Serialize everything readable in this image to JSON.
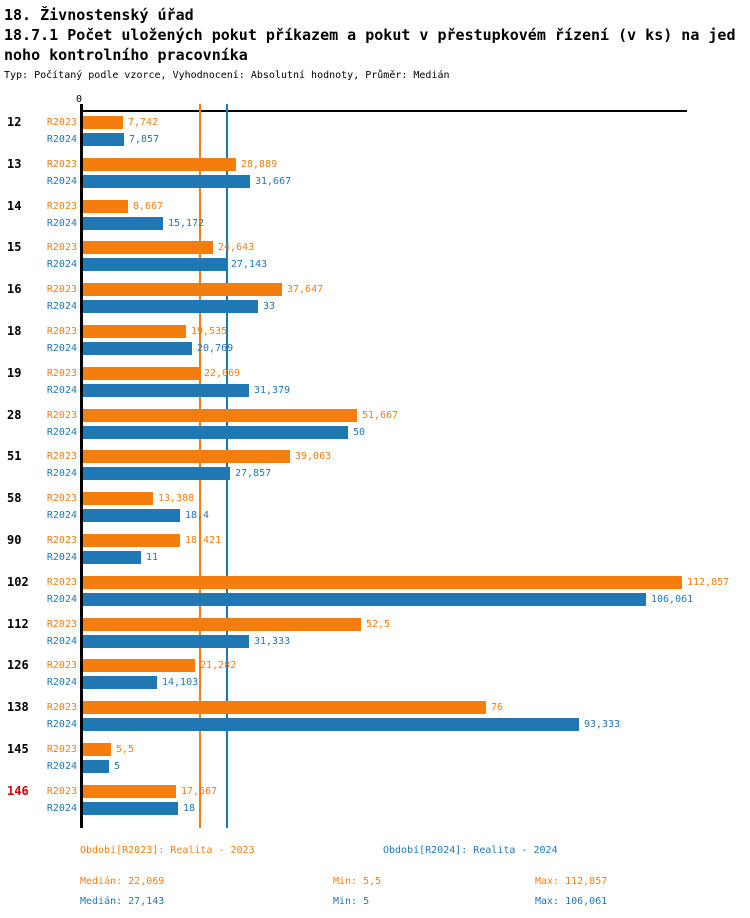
{
  "header": {
    "title_line1": "18. Živnostenský úřad",
    "title_line2": "18.7.1 Počet uložených pokut příkazem a pokut v přestupkovém řízení (v ks) na jed",
    "title_line3": "noho kontrolního pracovníka",
    "subtitle": "Typ: Počítaný podle vzorce, Vyhodnocení: Absolutní hodnoty, Průměr: Medián"
  },
  "chart_data": {
    "type": "bar",
    "orientation": "horizontal",
    "axis_origin_label": "0",
    "x_axis": {
      "min": 0,
      "max_visible": 113.6,
      "grid": false
    },
    "legend_position": "bottom",
    "highlight_color": "#E00000",
    "series": [
      {
        "name": "R2023",
        "color": "#F57D0D",
        "legend": "Období[R2023]: Realita - 2023",
        "median": 22.069,
        "stats": {
          "median_label": "Medián: 22,069",
          "min_label": "Min: 5,5",
          "max_label": "Max: 112,857"
        }
      },
      {
        "name": "R2024",
        "color": "#1F77B4",
        "legend": "Období[R2024]: Realita - 2024",
        "median": 27.143,
        "stats": {
          "median_label": "Medián: 27,143",
          "min_label": "Min: 5",
          "max_label": "Max: 106,061"
        }
      }
    ],
    "categories": [
      {
        "label": "12",
        "highlight": false,
        "values": [
          7.742,
          7.857
        ],
        "value_labels": [
          "7,742",
          "7,857"
        ]
      },
      {
        "label": "13",
        "highlight": false,
        "values": [
          28.889,
          31.667
        ],
        "value_labels": [
          "28,889",
          "31,667"
        ]
      },
      {
        "label": "14",
        "highlight": false,
        "values": [
          8.667,
          15.172
        ],
        "value_labels": [
          "8,667",
          "15,172"
        ]
      },
      {
        "label": "15",
        "highlight": false,
        "values": [
          24.643,
          27.143
        ],
        "value_labels": [
          "24,643",
          "27,143"
        ]
      },
      {
        "label": "16",
        "highlight": false,
        "values": [
          37.647,
          33
        ],
        "value_labels": [
          "37,647",
          "33"
        ]
      },
      {
        "label": "18",
        "highlight": false,
        "values": [
          19.535,
          20.769
        ],
        "value_labels": [
          "19,535",
          "20,769"
        ]
      },
      {
        "label": "19",
        "highlight": false,
        "values": [
          22.069,
          31.379
        ],
        "value_labels": [
          "22,069",
          "31,379"
        ]
      },
      {
        "label": "28",
        "highlight": false,
        "values": [
          51.667,
          50
        ],
        "value_labels": [
          "51,667",
          "50"
        ]
      },
      {
        "label": "51",
        "highlight": false,
        "values": [
          39.063,
          27.857
        ],
        "value_labels": [
          "39,063",
          "27,857"
        ]
      },
      {
        "label": "58",
        "highlight": false,
        "values": [
          13.388,
          18.4
        ],
        "value_labels": [
          "13,388",
          "18,4"
        ]
      },
      {
        "label": "90",
        "highlight": false,
        "values": [
          18.421,
          11
        ],
        "value_labels": [
          "18,421",
          "11"
        ]
      },
      {
        "label": "102",
        "highlight": false,
        "values": [
          112.857,
          106.061
        ],
        "value_labels": [
          "112,857",
          "106,061"
        ]
      },
      {
        "label": "112",
        "highlight": false,
        "values": [
          52.5,
          31.333
        ],
        "value_labels": [
          "52,5",
          "31,333"
        ]
      },
      {
        "label": "126",
        "highlight": false,
        "values": [
          21.282,
          14.103
        ],
        "value_labels": [
          "21,282",
          "14,103"
        ]
      },
      {
        "label": "138",
        "highlight": false,
        "values": [
          76,
          93.333
        ],
        "value_labels": [
          "76",
          "93,333"
        ]
      },
      {
        "label": "145",
        "highlight": false,
        "values": [
          5.5,
          5
        ],
        "value_labels": [
          "5,5",
          "5"
        ]
      },
      {
        "label": "146",
        "highlight": true,
        "values": [
          17.667,
          18
        ],
        "value_labels": [
          "17,667",
          "18"
        ]
      }
    ]
  }
}
